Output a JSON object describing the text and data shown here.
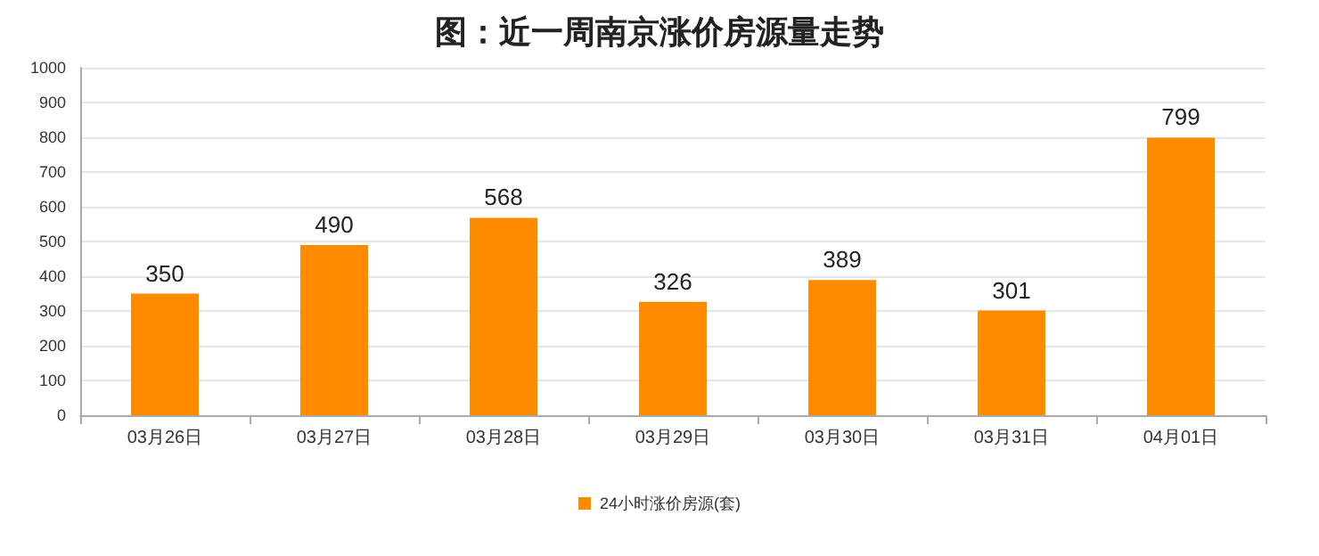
{
  "chart_data": {
    "type": "bar",
    "title": "图：近一周南京涨价房源量走势",
    "categories": [
      "03月26日",
      "03月27日",
      "03月28日",
      "03月29日",
      "03月30日",
      "03月31日",
      "04月01日"
    ],
    "series": [
      {
        "name": "24小时涨价房源(套)",
        "color": "#ff8c00",
        "values": [
          350,
          490,
          568,
          326,
          389,
          301,
          799
        ]
      }
    ],
    "ylim": [
      0,
      1000
    ],
    "yticks": [
      0,
      100,
      200,
      300,
      400,
      500,
      600,
      700,
      800,
      900,
      1000
    ],
    "grid": "y",
    "legend": "bottom",
    "data_labels": true
  }
}
